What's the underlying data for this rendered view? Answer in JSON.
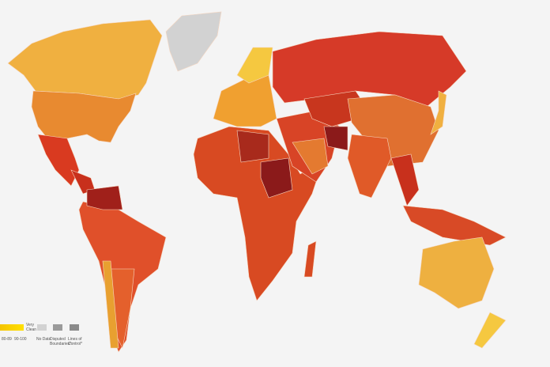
{
  "legend": {
    "scale_labels": [
      "80-89",
      "90-100"
    ],
    "scale_caption": "Very Clean",
    "no_data": "No Data",
    "disputed": "Disputed Boundaries*",
    "lines_of_control": "Lines of Control*"
  }
}
